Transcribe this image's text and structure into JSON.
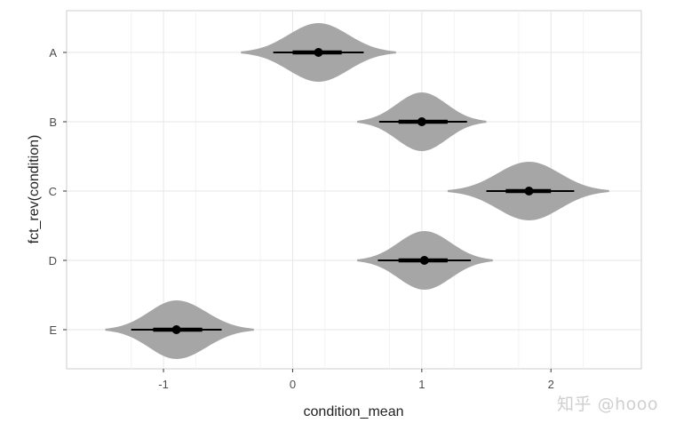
{
  "chart_data": {
    "type": "violin",
    "title": "",
    "xlabel": "condition_mean",
    "ylabel": "fct_rev(condition)",
    "xlim": [
      -1.75,
      2.7
    ],
    "x_ticks": [
      -1,
      0,
      1,
      2
    ],
    "x_tick_labels": [
      "-1",
      "0",
      "1",
      "2"
    ],
    "categories": [
      "A",
      "B",
      "C",
      "D",
      "E"
    ],
    "grid": true,
    "series": [
      {
        "category": "A",
        "point": 0.2,
        "thick_interval": [
          0.0,
          0.38
        ],
        "thin_interval": [
          -0.15,
          0.55
        ],
        "range": [
          -0.4,
          0.8
        ]
      },
      {
        "category": "B",
        "point": 1.0,
        "thick_interval": [
          0.82,
          1.2
        ],
        "thin_interval": [
          0.67,
          1.35
        ],
        "range": [
          0.5,
          1.5
        ]
      },
      {
        "category": "C",
        "point": 1.83,
        "thick_interval": [
          1.65,
          2.0
        ],
        "thin_interval": [
          1.5,
          2.18
        ],
        "range": [
          1.2,
          2.45
        ]
      },
      {
        "category": "D",
        "point": 1.02,
        "thick_interval": [
          0.82,
          1.2
        ],
        "thin_interval": [
          0.66,
          1.38
        ],
        "range": [
          0.5,
          1.55
        ]
      },
      {
        "category": "E",
        "point": -0.9,
        "thick_interval": [
          -1.08,
          -0.7
        ],
        "thin_interval": [
          -1.25,
          -0.55
        ],
        "range": [
          -1.45,
          -0.3
        ]
      }
    ],
    "colors": {
      "violin": "#a6a6a6",
      "interval": "#000000",
      "point": "#000000",
      "grid": "#e6e6e6",
      "panel_border": "#cccccc"
    }
  },
  "watermark": "知乎 @hooo"
}
